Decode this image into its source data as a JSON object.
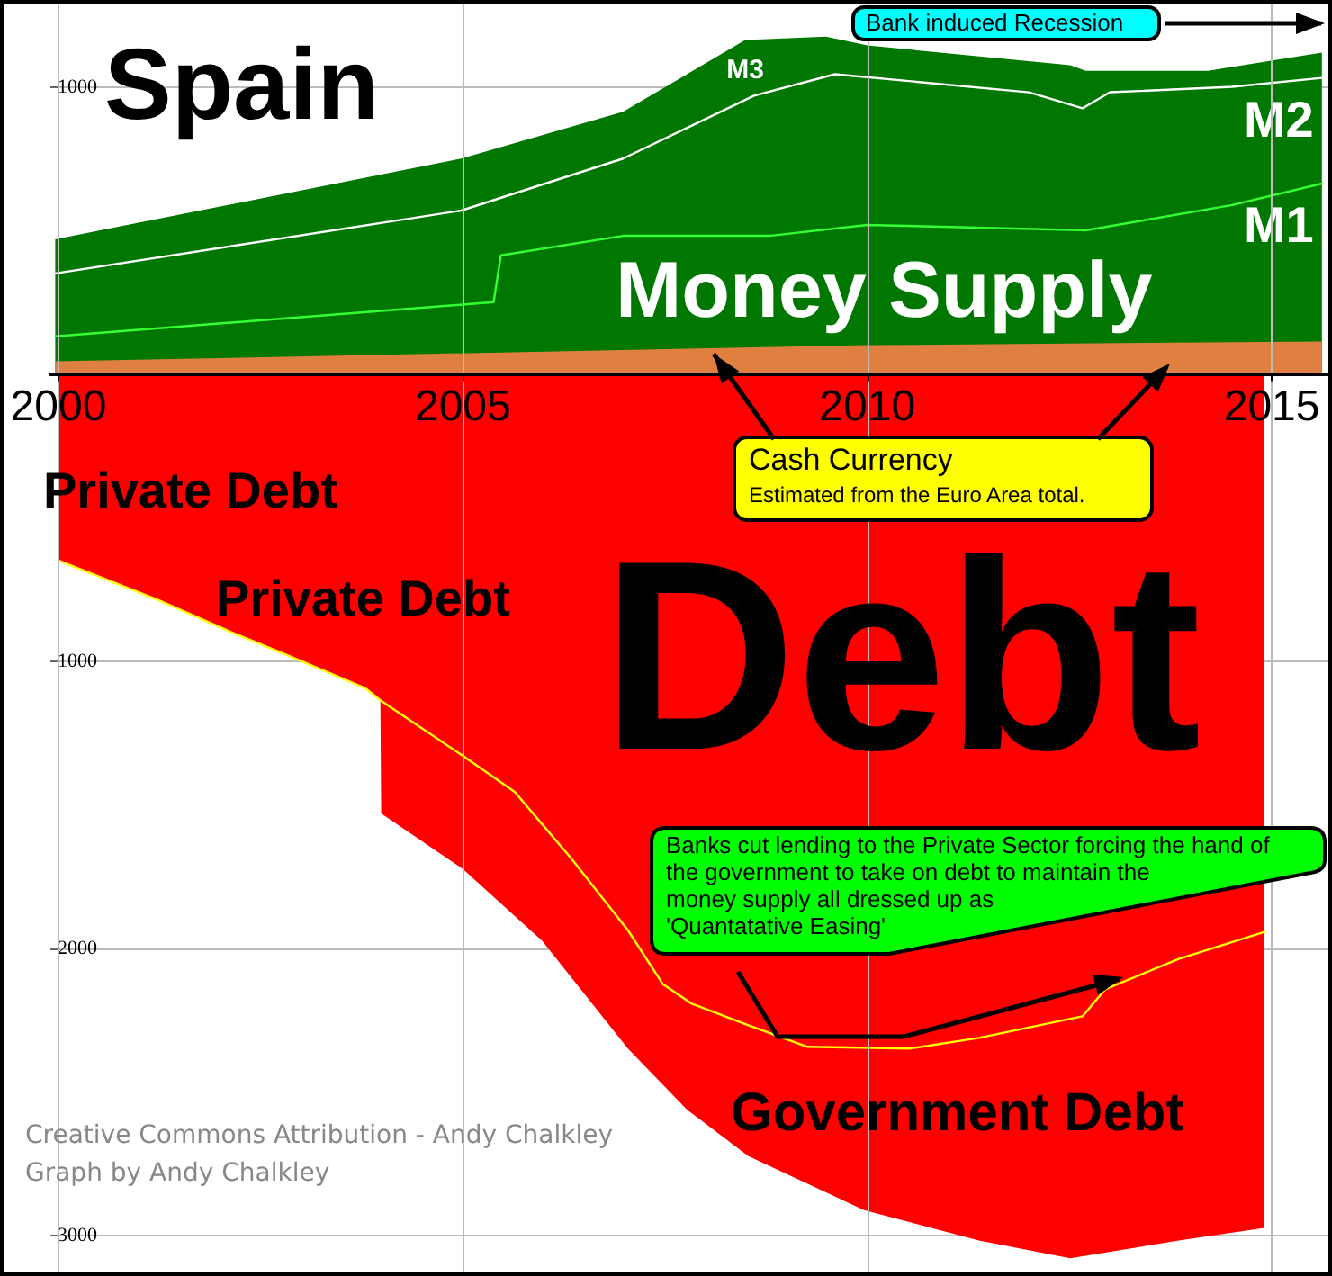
{
  "chart_data": {
    "type": "area",
    "xlim": [
      1999.9,
      2015.7
    ],
    "xticks": [
      2000,
      2005,
      2010,
      2015
    ],
    "ylim": [
      -3130,
      1290
    ],
    "yticks": [
      {
        "value": 1000,
        "label": "1000"
      },
      {
        "value": -1000,
        "label": "1000"
      },
      {
        "value": -2000,
        "label": "2000"
      },
      {
        "value": -3000,
        "label": "3000"
      }
    ],
    "grid": true,
    "marker": "none",
    "line_style": "solid",
    "series": [
      {
        "name": "M3",
        "color": "#007700",
        "x": [
          1999.96,
          2004.98,
          2006.98,
          2008.49,
          2009.49,
          2010.0,
          2012.51,
          2012.7,
          2014.21,
          2015.62
        ],
        "values": [
          469,
          750,
          913,
          1163,
          1175,
          1144,
          1075,
          1056,
          1056,
          1119
        ]
      },
      {
        "color": "#e08040",
        "x": [
          1999.96,
          2010.0,
          2015.62
        ],
        "values": [
          44,
          100,
          113
        ]
      },
      {
        "name": "M2",
        "type": "line",
        "color": "#ffffff",
        "x": [
          1999.96,
          2004.98,
          2006.98,
          2008.6,
          2009.6,
          2012.0,
          2012.66,
          2013.0,
          2014.51,
          2015.62
        ],
        "values": [
          350,
          569,
          750,
          969,
          1044,
          981,
          925,
          981,
          1000,
          1031
        ]
      },
      {
        "name": "M1",
        "type": "line",
        "color": "#33ff33",
        "x": [
          1999.96,
          2005.38,
          2005.47,
          2006.98,
          2008.79,
          2010.0,
          2012.7,
          2014.51,
          2015.62
        ],
        "values": [
          131,
          250,
          413,
          481,
          481,
          519,
          500,
          588,
          663
        ]
      },
      {
        "color": "#ff0000",
        "x": [
          2000.0,
          2001.23,
          2002.09,
          2002.79,
          2003.79,
          2003.98,
          2003.99,
          2005.0,
          2005.98,
          2007.04,
          2007.77,
          2008.53,
          2009.96,
          2011.38,
          2012.51,
          2013.85,
          2014.91
        ],
        "values": [
          -650,
          -787,
          -894,
          -975,
          -1094,
          -1137,
          -1531,
          -1725,
          -1975,
          -2350,
          -2563,
          -2725,
          -2913,
          -3019,
          -3081,
          -3019,
          -2975
        ]
      },
      {
        "type": "line",
        "color": "#ffff00",
        "x": [
          2000.0,
          2001.23,
          2002.09,
          2002.79,
          2003.79,
          2003.98,
          2005.0,
          2005.64,
          2006.34,
          2007.04,
          2007.47,
          2007.83,
          2008.53,
          2009.26,
          2010.53,
          2011.38,
          2012.66,
          2012.94,
          2013.85,
          2014.91
        ],
        "values": [
          -650,
          -787,
          -894,
          -975,
          -1094,
          -1137,
          -1331,
          -1456,
          -1688,
          -1938,
          -2125,
          -2194,
          -2269,
          -2344,
          -2350,
          -2313,
          -2238,
          -2144,
          -2038,
          -1944
        ]
      }
    ],
    "annotations": [
      "Spain",
      "Money Supply",
      "Bank induced Recession",
      {
        "text": "Cash Currency",
        "x": 2008.1,
        "y": 70
      },
      "Estimated from the Euro Area total.",
      "Private Debt",
      "Private Debt",
      "Debt",
      "Banks cut lending to the Private Sector forcing the hand of\nthe government to take on debt to maintain the\nmoney supply all dressed up as\n'Quantatative Easing'",
      "Government Debt",
      "Creative Commons Attribution - Andy Chalkley",
      "Graph by Andy Chalkley"
    ]
  }
}
